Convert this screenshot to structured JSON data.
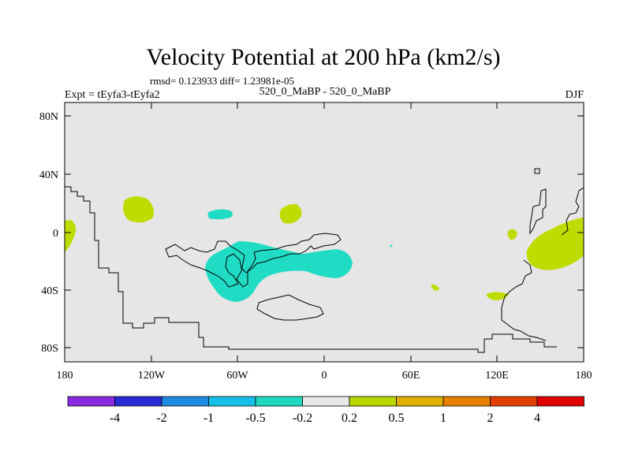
{
  "title": "Velocity Potential at 200 hPa (km2/s)",
  "stats": "rmsd= 0.123933 diff= 1.23981e-05",
  "left_label": "Expt = tEyfa3-tEyfa2",
  "center_label": "520_0_MaBP - 520_0_MaBP",
  "right_label": "DJF",
  "lat_labels": [
    "80N",
    "40N",
    "0",
    "40S",
    "80S"
  ],
  "lon_labels": [
    "180",
    "120W",
    "60W",
    "0",
    "60E",
    "120E",
    "180"
  ],
  "colorbar": {
    "colors": [
      "#8a2be2",
      "#2a2ad6",
      "#1e8ae0",
      "#14c0e8",
      "#1ed8c0",
      "#e8e8e8",
      "#b8d800",
      "#e0b000",
      "#e88000",
      "#e04000",
      "#e00000"
    ],
    "labels": [
      "-4",
      "-2",
      "-1",
      "-0.5",
      "-0.2",
      "0.2",
      "0.5",
      "1",
      "2",
      "4"
    ]
  },
  "colors": {
    "background_field": "#e6e6e6",
    "positive": "#bedc00",
    "negative": "#20dcc4"
  }
}
